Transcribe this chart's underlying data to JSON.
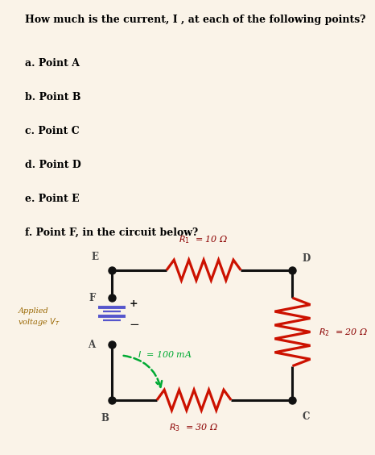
{
  "bg_color": "#faf3e8",
  "circuit_bg": "#ffffff",
  "title_text": "How much is the current, I , at each of the following points?",
  "questions": [
    "a. Point A",
    "b. Point B",
    "c. Point C",
    "d. Point D",
    "e. Point E",
    "f. Point F, in the circuit below?"
  ],
  "circuit_color": "#111111",
  "resistor_color": "#cc1100",
  "battery_color": "#5555cc",
  "arrow_color": "#00aa33",
  "point_label_color": "#444444",
  "resistor_label_color": "#8B0000",
  "applied_label_color": "#996600",
  "R1_label": "$R_1$  = 10 Ω",
  "R2_label": "$R_2$  = 20 Ω",
  "R3_label": "$R_3$  = 30 Ω",
  "I_label": "$I$  = 100 mA",
  "applied_label": "Applied\nvoltage $V_T$",
  "title_fontsize": 9.0,
  "question_fontsize": 9.0,
  "label_fontsize": 8.0
}
